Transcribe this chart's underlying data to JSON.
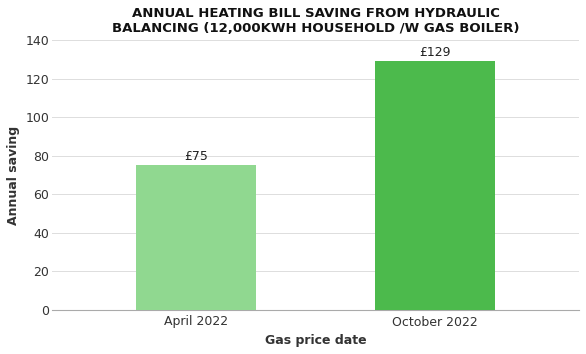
{
  "categories": [
    "April 2022",
    "October 2022"
  ],
  "values": [
    75,
    129
  ],
  "bar_color_april": "#90d890",
  "bar_color_october": "#4cba4c",
  "title_line1": "ANNUAL HEATING BILL SAVING FROM HYDRAULIC",
  "title_line2": "BALANCING (12,000KWH HOUSEHOLD /W GAS BOILER)",
  "xlabel": "Gas price date",
  "ylabel": "Annual saving",
  "ylim": [
    0,
    140
  ],
  "yticks": [
    0,
    20,
    40,
    60,
    80,
    100,
    120,
    140
  ],
  "annotations": [
    "£75",
    "£129"
  ],
  "background_color": "#ffffff",
  "title_fontsize": 9.5,
  "axis_label_fontsize": 9,
  "tick_fontsize": 9,
  "annotation_fontsize": 9
}
